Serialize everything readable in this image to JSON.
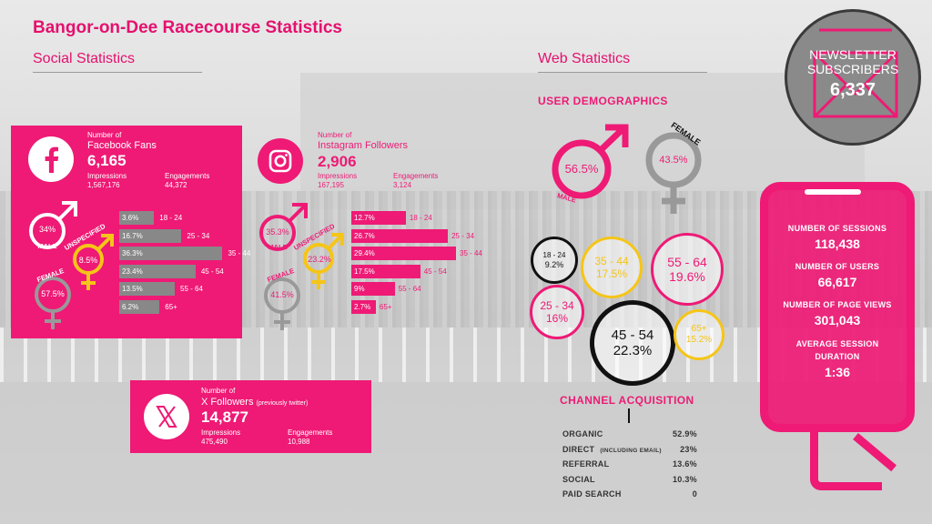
{
  "title": "Bangor-on-Dee Racecourse Statistics",
  "social": {
    "heading": "Social Statistics",
    "facebook": {
      "label_top": "Number of",
      "label": "Facebook Fans",
      "count": "6,165",
      "impressions_label": "Impressions",
      "impressions": "1,567,176",
      "engagements_label": "Engagements",
      "engagements": "44,372",
      "male": "34%",
      "male_label": "MALE",
      "unspecified": "8.5%",
      "unspecified_label": "UNSPECIFIED",
      "female": "57.5%",
      "female_label": "FEMALE",
      "ages": [
        {
          "pct": "3.6%",
          "range": "18 - 24",
          "value": 3.6
        },
        {
          "pct": "16.7%",
          "range": "25 - 34",
          "value": 16.7
        },
        {
          "pct": "36.3%",
          "range": "35 - 44",
          "value": 36.3
        },
        {
          "pct": "23.4%",
          "range": "45 - 54",
          "value": 23.4
        },
        {
          "pct": "13.5%",
          "range": "55 - 64",
          "value": 13.5
        },
        {
          "pct": "6.2%",
          "range": "65+",
          "value": 6.2
        }
      ]
    },
    "instagram": {
      "label_top": "Number of",
      "label": "Instagram Followers",
      "count": "2,906",
      "impressions_label": "Impressions",
      "impressions": "167,195",
      "engagements_label": "Engagements",
      "engagements": "3,124",
      "male": "35.3%",
      "male_label": "MALE",
      "unspecified": "23.2%",
      "unspecified_label": "UNSPECIFIED",
      "female": "41.5%",
      "female_label": "FEMALE",
      "ages": [
        {
          "pct": "12.7%",
          "range": "18 - 24",
          "value": 12.7
        },
        {
          "pct": "26.7%",
          "range": "25 - 34",
          "value": 26.7
        },
        {
          "pct": "29.4%",
          "range": "35 - 44",
          "value": 29.4
        },
        {
          "pct": "17.5%",
          "range": "45 - 54",
          "value": 17.5
        },
        {
          "pct": "9%",
          "range": "55 - 64",
          "value": 9
        },
        {
          "pct": "2.7%",
          "range": "65+",
          "value": 2.7
        }
      ]
    },
    "x": {
      "label_top": "Number of",
      "label": "X Followers",
      "label_note": "(previously twitter)",
      "count": "14,877",
      "impressions_label": "Impressions",
      "impressions": "475,490",
      "engagements_label": "Engagements",
      "engagements": "10,988"
    }
  },
  "web": {
    "heading": "Web Statistics",
    "demographics_heading": "USER DEMOGRAPHICS",
    "male": "56.5%",
    "male_label": "MALE",
    "female": "43.5%",
    "female_label": "FEMALE",
    "age_bubbles": [
      {
        "range": "18 - 24",
        "pct": "9.2%"
      },
      {
        "range": "35 - 44",
        "pct": "17.5%"
      },
      {
        "range": "55 - 64",
        "pct": "19.6%"
      },
      {
        "range": "25 - 34",
        "pct": "16%"
      },
      {
        "range": "45 - 54",
        "pct": "22.3%"
      },
      {
        "range": "65+",
        "pct": "15.2%"
      }
    ],
    "channel_heading": "CHANNEL ACQUISITION",
    "channels": [
      {
        "name": "ORGANIC",
        "note": "",
        "value": "52.9%"
      },
      {
        "name": "DIRECT",
        "note": "(INCLUDING EMAIL)",
        "value": "23%"
      },
      {
        "name": "REFERRAL",
        "note": "",
        "value": "13.6%"
      },
      {
        "name": "SOCIAL",
        "note": "",
        "value": "10.3%"
      },
      {
        "name": "PAID SEARCH",
        "note": "",
        "value": "0"
      }
    ]
  },
  "newsletter": {
    "line1": "NEWSLETTER",
    "line2": "SUBSCRIBERS",
    "count": "6,337"
  },
  "phone": {
    "sessions_label": "NUMBER OF SESSIONS",
    "sessions": "118,438",
    "users_label": "NUMBER OF USERS",
    "users": "66,617",
    "pageviews_label": "NUMBER OF PAGE VIEWS",
    "pageviews": "301,043",
    "duration_label1": "AVERAGE SESSION",
    "duration_label2": "DURATION",
    "duration": "1:36"
  },
  "colors": {
    "pink": "#ee1a75",
    "grey": "#888888",
    "yellow": "#f5c518",
    "black": "#111111"
  }
}
